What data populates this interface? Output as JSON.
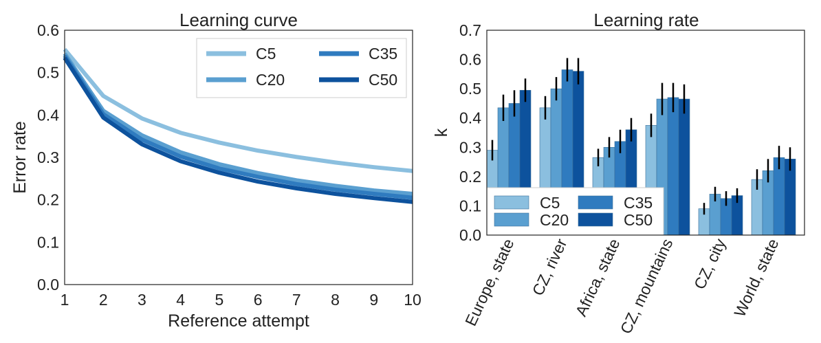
{
  "chart_data": [
    {
      "type": "line",
      "title": "Learning curve",
      "xlabel": "Reference attempt",
      "ylabel": "Error rate",
      "xlim": [
        1,
        10
      ],
      "ylim": [
        0.0,
        0.6
      ],
      "x_ticks": [
        "1",
        "2",
        "3",
        "4",
        "5",
        "6",
        "7",
        "8",
        "9",
        "10"
      ],
      "y_ticks": [
        "0.0",
        "0.1",
        "0.2",
        "0.3",
        "0.4",
        "0.5",
        "0.6"
      ],
      "x": [
        1,
        2,
        3,
        4,
        5,
        6,
        7,
        8,
        9,
        10
      ],
      "legend_position": "top-right",
      "grid": false,
      "series": [
        {
          "name": "C5",
          "color": "#8bbfdf",
          "values": [
            0.555,
            0.445,
            0.392,
            0.358,
            0.335,
            0.316,
            0.301,
            0.288,
            0.277,
            0.268
          ]
        },
        {
          "name": "C20",
          "color": "#5a9fd0",
          "values": [
            0.545,
            0.41,
            0.352,
            0.312,
            0.284,
            0.263,
            0.246,
            0.233,
            0.222,
            0.214
          ]
        },
        {
          "name": "C35",
          "color": "#2f7bbf",
          "values": [
            0.54,
            0.402,
            0.342,
            0.302,
            0.274,
            0.254,
            0.237,
            0.224,
            0.214,
            0.205
          ]
        },
        {
          "name": "C50",
          "color": "#0d529d",
          "values": [
            0.535,
            0.394,
            0.331,
            0.291,
            0.264,
            0.243,
            0.227,
            0.214,
            0.204,
            0.195
          ]
        }
      ]
    },
    {
      "type": "bar",
      "title": "Learning rate",
      "xlabel": "",
      "ylabel": "k",
      "ylim": [
        0.0,
        0.7
      ],
      "y_ticks": [
        "0.0",
        "0.1",
        "0.2",
        "0.3",
        "0.4",
        "0.5",
        "0.6",
        "0.7"
      ],
      "categories": [
        "Europe, state",
        "CZ, river",
        "Africa, state",
        "CZ, mountains",
        "CZ, city",
        "World, state"
      ],
      "legend_position": "lower-left",
      "grid": false,
      "series": [
        {
          "name": "C5",
          "color": "#8bbfdf",
          "values": [
            0.29,
            0.435,
            0.265,
            0.375,
            0.09,
            0.19
          ],
          "errors": [
            0.035,
            0.04,
            0.03,
            0.04,
            0.02,
            0.035
          ]
        },
        {
          "name": "C20",
          "color": "#5a9fd0",
          "values": [
            0.435,
            0.5,
            0.3,
            0.465,
            0.14,
            0.22
          ],
          "errors": [
            0.045,
            0.04,
            0.035,
            0.055,
            0.025,
            0.04
          ]
        },
        {
          "name": "C35",
          "color": "#2f7bbf",
          "values": [
            0.45,
            0.565,
            0.32,
            0.47,
            0.125,
            0.265
          ],
          "errors": [
            0.045,
            0.04,
            0.04,
            0.05,
            0.025,
            0.04
          ]
        },
        {
          "name": "C50",
          "color": "#0d529d",
          "values": [
            0.495,
            0.56,
            0.36,
            0.465,
            0.135,
            0.26
          ],
          "errors": [
            0.04,
            0.045,
            0.04,
            0.05,
            0.025,
            0.04
          ]
        }
      ]
    }
  ]
}
